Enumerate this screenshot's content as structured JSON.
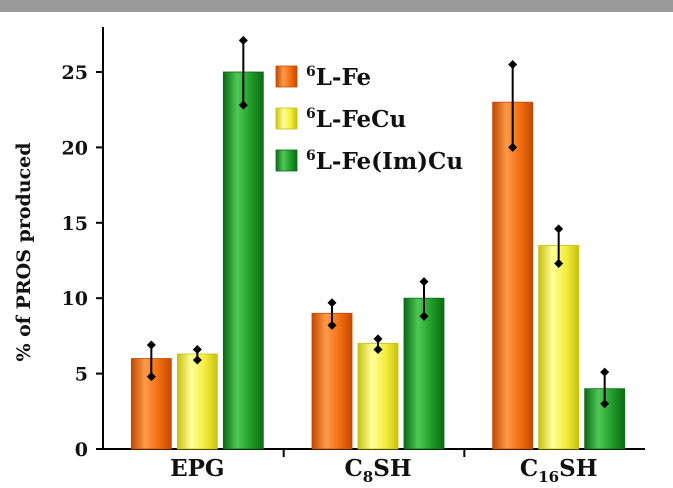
{
  "chart_data": {
    "type": "bar",
    "title": "",
    "xlabel": "",
    "ylabel": "% of PROS produced",
    "ylim": [
      0,
      27.5
    ],
    "yticks": [
      "0",
      "5",
      "10",
      "15",
      "20",
      "25"
    ],
    "grid": false,
    "legend_position": "top-center",
    "categories": [
      {
        "text": "EPG",
        "sub": "",
        "tail": ""
      },
      {
        "text": "C",
        "sub": "8",
        "tail": "SH"
      },
      {
        "text": "C",
        "sub": "16",
        "tail": "SH"
      }
    ],
    "series": [
      {
        "sup": "6",
        "name": "L-Fe",
        "color": "#f26b0f",
        "dark": "#c24a00",
        "light": "#ff9a4a",
        "values": [
          6.0,
          9.0,
          23.0
        ],
        "err_low": [
          4.8,
          8.2,
          20.0
        ],
        "err_high": [
          6.9,
          9.7,
          25.5
        ]
      },
      {
        "sup": "6",
        "name": "L-FeCu",
        "color": "#f2ec3a",
        "dark": "#c9c010",
        "light": "#ffff9a",
        "values": [
          6.3,
          7.0,
          13.5
        ],
        "err_low": [
          5.9,
          6.6,
          12.3
        ],
        "err_high": [
          6.6,
          7.3,
          14.6
        ]
      },
      {
        "sup": "6",
        "name": "L-Fe(Im)Cu",
        "color": "#1f9a28",
        "dark": "#0d6a14",
        "light": "#4ec957",
        "values": [
          25.0,
          10.0,
          4.0
        ],
        "err_low": [
          22.8,
          8.8,
          3.0
        ],
        "err_high": [
          27.1,
          11.1,
          5.1
        ]
      }
    ]
  }
}
